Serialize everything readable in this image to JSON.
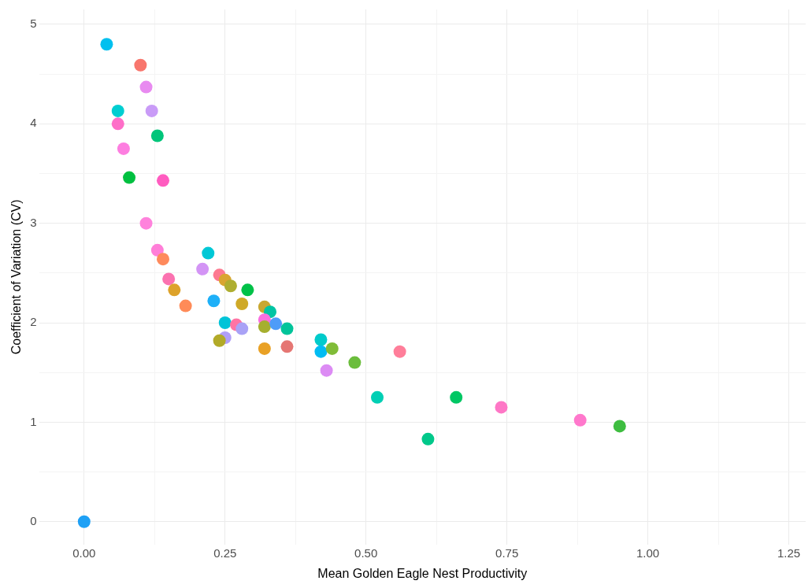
{
  "chart_data": {
    "type": "scatter",
    "xlabel": "Mean Golden Eagle Nest Productivity",
    "ylabel": "Coefficient of Variation (CV)",
    "xlim": [
      -0.08,
      1.28
    ],
    "ylim": [
      -0.23,
      5.15
    ],
    "xticks": [
      {
        "value": 0,
        "label": "0.00"
      },
      {
        "value": 0.125,
        "label": null
      },
      {
        "value": 0.25,
        "label": "0.25"
      },
      {
        "value": 0.375,
        "label": null
      },
      {
        "value": 0.5,
        "label": "0.50"
      },
      {
        "value": 0.625,
        "label": null
      },
      {
        "value": 0.75,
        "label": "0.75"
      },
      {
        "value": 0.875,
        "label": null
      },
      {
        "value": 1,
        "label": "1.00"
      },
      {
        "value": 1.125,
        "label": null
      },
      {
        "value": 1.25,
        "label": "1.25"
      }
    ],
    "yticks": [
      0,
      {
        "value": 0.5,
        "label": null
      },
      1,
      {
        "value": 1.5,
        "label": null
      },
      2,
      {
        "value": 2.5,
        "label": null
      },
      3,
      {
        "value": 3.5,
        "label": null
      },
      4,
      {
        "value": 4.5,
        "label": null
      },
      5
    ],
    "grid": true,
    "legend": false,
    "marker": "circle",
    "series": [
      {
        "x": [
          0.04,
          0.1,
          0.11,
          0.06,
          0.12,
          0.06,
          0.13,
          0.07,
          0.08,
          0.14,
          0.11,
          0.13,
          0.14,
          0.22,
          0.21,
          0.15,
          0.16,
          0.18,
          0.23,
          0.24,
          0.25,
          0.26,
          0.29,
          0.28,
          0.32,
          0.33,
          0.32,
          0.25,
          0.27,
          0.28,
          0.32,
          0.34,
          0.36,
          0.25,
          0.24,
          0.32,
          0.36,
          0.42,
          0.42,
          0.44,
          0.48,
          0.43,
          0.56,
          0.52,
          0.61,
          0.66,
          0.74,
          0.88,
          0.95,
          0
        ],
        "values": [
          4.8,
          4.59,
          4.37,
          4.13,
          4.13,
          4.0,
          3.88,
          3.75,
          3.46,
          3.43,
          3.0,
          2.73,
          2.64,
          2.7,
          2.54,
          2.44,
          2.33,
          2.17,
          2.22,
          2.48,
          2.43,
          2.37,
          2.33,
          2.19,
          2.16,
          2.11,
          2.03,
          2.0,
          1.98,
          1.94,
          1.96,
          1.99,
          1.94,
          1.85,
          1.82,
          1.74,
          1.76,
          1.83,
          1.71,
          1.74,
          1.6,
          1.52,
          1.71,
          1.25,
          0.83,
          1.25,
          1.15,
          1.02,
          0.96,
          0
        ],
        "colors": [
          "#00c0ef",
          "#f8766d",
          "#e88af0",
          "#00ced1",
          "#c99bf7",
          "#fe6ec8",
          "#00c57a",
          "#fd7ee0",
          "#00c040",
          "#ff5cc0",
          "#ff82dc",
          "#ff7ed8",
          "#fe8a5c",
          "#00c8d6",
          "#d394f5",
          "#fb72b0",
          "#dda22a",
          "#ff8b58",
          "#1eb0f8",
          "#fd7990",
          "#d9a530",
          "#aeae30",
          "#00c148",
          "#cfa927",
          "#c9a730",
          "#00c4a3",
          "#fa6ee0",
          "#00c4d8",
          "#ff74a4",
          "#a9a2f6",
          "#a6af2f",
          "#4e9cf8",
          "#00c49a",
          "#b09ef8",
          "#b2aa28",
          "#e9a125",
          "#e57673",
          "#00cbcb",
          "#00bcf3",
          "#80bc38",
          "#6bbd3c",
          "#dc8bf4",
          "#ff7e9a",
          "#00cfb4",
          "#00c88a",
          "#00c764",
          "#fe77c6",
          "#ff78cc",
          "#3ebd40",
          "#1ea0f5"
        ]
      }
    ]
  }
}
